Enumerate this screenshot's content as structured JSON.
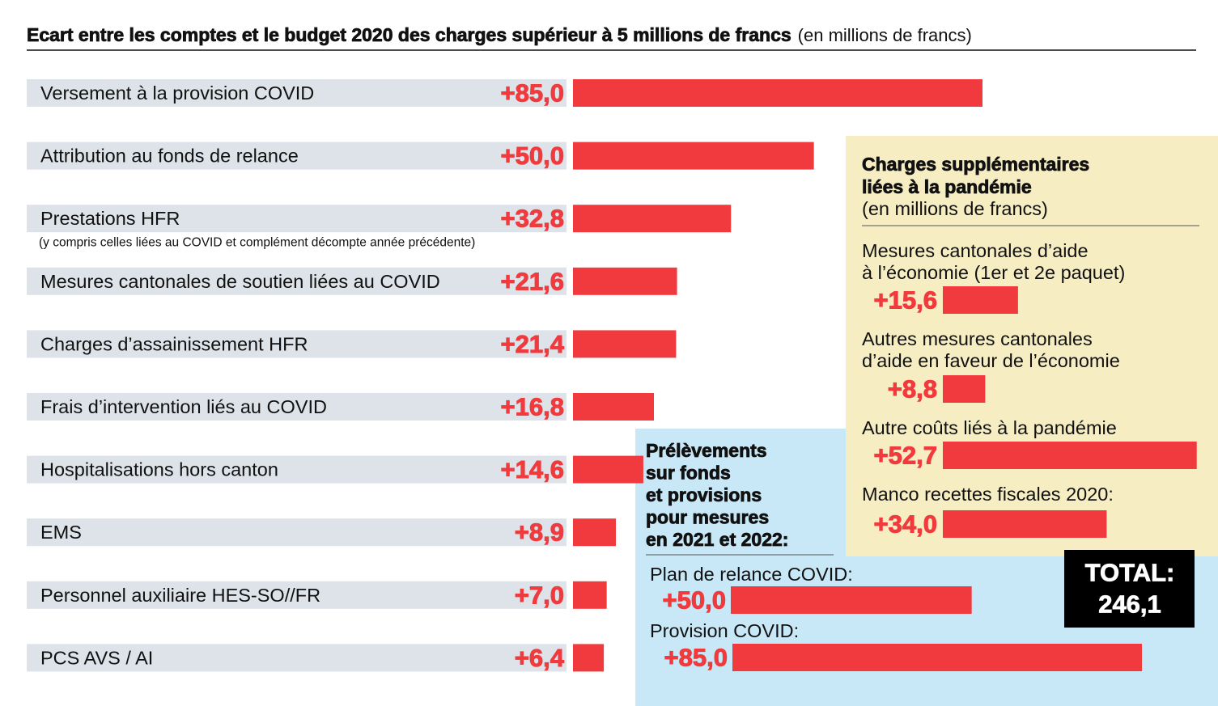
{
  "title": "Ecart entre les comptes et le budget 2020 des charges supérieur à 5 millions de francs",
  "title_unit": "(en millions de francs)",
  "chart_data": [
    {
      "type": "hbar",
      "color": "#f03a3d",
      "categories": [
        [
          "Versement à la provision COVID"
        ],
        [
          "Attribution au fonds de relance"
        ],
        [
          "Prestations HFR"
        ],
        [
          "Mesures cantonales de soutien liées au COVID"
        ],
        [
          "Charges d’assainissement HFR"
        ],
        [
          "Frais d’intervention liés au COVID"
        ],
        [
          "Hospitalisations hors canton"
        ],
        [
          "EMS"
        ],
        [
          "Personnel auxiliaire HES-SO//FR"
        ],
        [
          "PCS AVS / AI"
        ]
      ],
      "category_notes": [
        null,
        null,
        "(y compris celles liées au COVID et complément décompte année précédente)",
        null,
        null,
        null,
        null,
        null,
        null,
        null
      ],
      "values": [
        85.0,
        50.0,
        32.8,
        21.6,
        21.4,
        16.8,
        14.6,
        8.9,
        7.0,
        6.4
      ],
      "value_labels": [
        "+85,0",
        "+50,0",
        "+32,8",
        "+21,6",
        "+21,4",
        "+16,8",
        "+14,6",
        "+8,9",
        "+7,0",
        "+6,4"
      ]
    },
    {
      "type": "hbar",
      "color": "#f03a3d",
      "title": [
        "Charges supplémentaires",
        "liées à la pandémie"
      ],
      "subtitle": "(en millions de francs)",
      "categories": [
        [
          "Mesures cantonales d’aide",
          "à l’économie (1er et 2e paquet)"
        ],
        [
          "Autres mesures cantonales",
          "d’aide en faveur de l’économie"
        ],
        [
          "Autre coûts liés à la pandémie"
        ],
        [
          "Manco recettes fiscales 2020:"
        ]
      ],
      "values": [
        15.6,
        8.8,
        52.7,
        34.0
      ],
      "value_labels": [
        "+15,6",
        "+8,8",
        "+52,7",
        "+34,0"
      ]
    },
    {
      "type": "hbar",
      "color": "#f03a3d",
      "title": [
        "Prélèvements",
        "sur fonds",
        "et provisions",
        "pour mesures",
        "en 2021 et 2022:"
      ],
      "categories": [
        [
          "Plan de relance COVID:"
        ],
        [
          "Provision COVID:"
        ]
      ],
      "values": [
        50.0,
        85.0
      ],
      "value_labels": [
        "+50,0",
        "+85,0"
      ]
    }
  ],
  "total_label": "TOTAL:",
  "total": 246.1,
  "total_value_label": "246,1"
}
